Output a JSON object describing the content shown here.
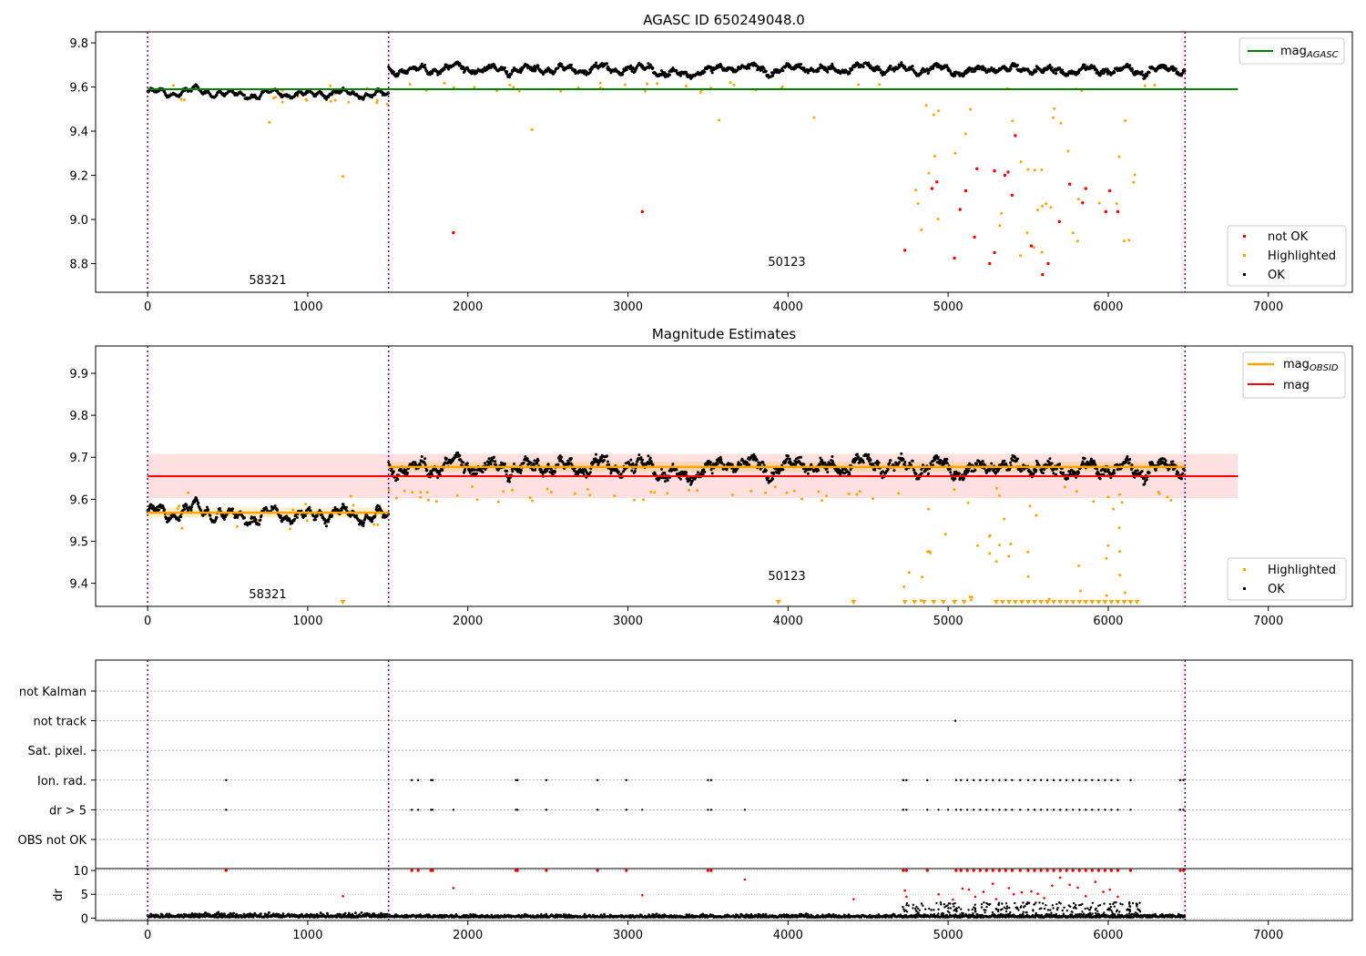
{
  "chart_data": [
    {
      "type": "scatter",
      "title": "AGASC ID 650249048.0",
      "xlim": [
        -325,
        7525
      ],
      "ylim": [
        8.67,
        9.85
      ],
      "xticks": [
        0,
        1000,
        2000,
        3000,
        4000,
        5000,
        6000,
        7000
      ],
      "xtick_labels": [
        "0",
        "1000",
        "2000",
        "3000",
        "4000",
        "5000",
        "6000",
        "7000"
      ],
      "yticks": [
        8.8,
        9.0,
        9.2,
        9.4,
        9.6,
        9.8
      ],
      "ytick_labels": [
        "8.8",
        "9.0",
        "9.2",
        "9.4",
        "9.6",
        "9.8"
      ],
      "obs_boundaries": [
        0,
        1505,
        6480
      ],
      "annotations": [
        {
          "text": "58321",
          "x": 750,
          "y": 8.72
        },
        {
          "text": "50123",
          "x": 3990,
          "y": 8.8
        }
      ],
      "hlines": [
        {
          "name": "mag_AGASC",
          "y": 9.59,
          "x0": 0,
          "x1": 6810,
          "color": "#008000"
        }
      ],
      "series": [
        {
          "name": "not OK",
          "color": "#ff0000"
        },
        {
          "name": "Highlighted",
          "color": "#ffa500"
        },
        {
          "name": "OK",
          "color": "#000000"
        }
      ],
      "trend": [
        {
          "x0": 0,
          "x1": 1505,
          "level": 9.575,
          "spread": 0.012
        },
        {
          "x0": 1505,
          "x1": 6480,
          "level": 9.68,
          "spread": 0.02
        }
      ],
      "not_ok_points": [
        [
          1910,
          8.94
        ],
        [
          3090,
          9.035
        ],
        [
          4730,
          8.86
        ],
        [
          4900,
          9.14
        ],
        [
          4930,
          9.17
        ],
        [
          5040,
          8.825
        ],
        [
          5075,
          9.045
        ],
        [
          5110,
          9.13
        ],
        [
          5165,
          8.92
        ],
        [
          5180,
          9.23
        ],
        [
          5260,
          8.8
        ],
        [
          5290,
          8.85
        ],
        [
          5290,
          9.22
        ],
        [
          5355,
          9.2
        ],
        [
          5375,
          9.215
        ],
        [
          5400,
          9.11
        ],
        [
          5420,
          9.38
        ],
        [
          5520,
          8.88
        ],
        [
          5590,
          8.75
        ],
        [
          5625,
          8.8
        ],
        [
          5695,
          8.99
        ],
        [
          5760,
          9.16
        ],
        [
          5840,
          9.075
        ],
        [
          5860,
          9.14
        ],
        [
          5985,
          9.035
        ],
        [
          6010,
          9.13
        ],
        [
          6060,
          9.035
        ]
      ]
    },
    {
      "type": "scatter",
      "title": "Magnitude Estimates",
      "xlim": [
        -325,
        7525
      ],
      "ylim": [
        9.345,
        9.965
      ],
      "xticks": [
        0,
        1000,
        2000,
        3000,
        4000,
        5000,
        6000,
        7000
      ],
      "xtick_labels": [
        "0",
        "1000",
        "2000",
        "3000",
        "4000",
        "5000",
        "6000",
        "7000"
      ],
      "yticks": [
        9.4,
        9.5,
        9.6,
        9.7,
        9.8,
        9.9
      ],
      "ytick_labels": [
        "9.4",
        "9.5",
        "9.6",
        "9.7",
        "9.8",
        "9.9"
      ],
      "obs_boundaries": [
        0,
        1505,
        6480
      ],
      "annotations": [
        {
          "text": "58321",
          "x": 750,
          "y": 9.365
        },
        {
          "text": "50123",
          "x": 3990,
          "y": 9.41
        }
      ],
      "hlines": [
        {
          "name": "mag",
          "y": 9.655,
          "x0": 0,
          "x1": 6810,
          "color": "#ff0000"
        }
      ],
      "band": {
        "y0": 9.603,
        "y1": 9.708,
        "x0": 0,
        "x1": 6810,
        "color": "#ff0000",
        "opacity": 0.12
      },
      "obs_mag": [
        {
          "x0": 0,
          "x1": 1505,
          "y": 9.568
        },
        {
          "x0": 1505,
          "x1": 6480,
          "y": 9.677
        }
      ],
      "obs_band_opacity": 0.2,
      "series": [
        {
          "name": "Highlighted",
          "color": "#ffa500"
        },
        {
          "name": "OK",
          "color": "#000000"
        }
      ],
      "trend": [
        {
          "x0": 0,
          "x1": 1505,
          "level": 9.568,
          "spread": 0.012
        },
        {
          "x0": 1505,
          "x1": 6480,
          "level": 9.677,
          "spread": 0.02
        }
      ]
    },
    {
      "type": "scatter",
      "title": "",
      "xlim": [
        -325,
        7525
      ],
      "categories": [
        "not Kalman",
        "not track",
        "Sat. pixel.",
        "Ion. rad.",
        "dr > 5",
        "OBS not OK"
      ],
      "obs_boundaries": [
        0,
        1505,
        6480
      ],
      "flag_points": {
        "not track": [
          5045
        ],
        "Ion. rad.": [
          490,
          1650,
          1690,
          1770,
          1780,
          2300,
          2310,
          2490,
          2810,
          2990,
          3500,
          3520,
          4720,
          4740,
          4870,
          5050,
          5080,
          5120,
          5160,
          5200,
          5240,
          5280,
          5320,
          5360,
          5400,
          5450,
          5500,
          5540,
          5580,
          5620,
          5660,
          5700,
          5740,
          5780,
          5820,
          5860,
          5900,
          5940,
          5980,
          6020,
          6060,
          6140,
          6450,
          6470
        ],
        "dr > 5": [
          490,
          1650,
          1690,
          1770,
          1780,
          1910,
          2300,
          2310,
          2490,
          2810,
          2990,
          3090,
          3500,
          3520,
          3730,
          4720,
          4740,
          4870,
          4940,
          5000,
          5050,
          5080,
          5120,
          5160,
          5200,
          5240,
          5280,
          5320,
          5360,
          5400,
          5450,
          5500,
          5540,
          5580,
          5620,
          5660,
          5700,
          5740,
          5780,
          5820,
          5860,
          5900,
          5940,
          5980,
          6020,
          6060,
          6140,
          6450,
          6470
        ]
      }
    },
    {
      "type": "scatter",
      "title": "",
      "ylabel": "dr",
      "xlim": [
        -325,
        7525
      ],
      "ylim": [
        -0.5,
        10.4
      ],
      "xticks": [
        0,
        1000,
        2000,
        3000,
        4000,
        5000,
        6000,
        7000
      ],
      "xtick_labels": [
        "0",
        "1000",
        "2000",
        "3000",
        "4000",
        "5000",
        "6000",
        "7000"
      ],
      "yticks": [
        0,
        5,
        10
      ],
      "ytick_labels": [
        "0",
        "5",
        "10"
      ],
      "obs_boundaries": [
        0,
        1505,
        6480
      ],
      "clipped_at": 10,
      "saturated_x": [
        490,
        1650,
        1690,
        1770,
        1780,
        2300,
        2310,
        2490,
        2810,
        2990,
        3500,
        3520,
        4720,
        4740,
        4870,
        5050,
        5080,
        5120,
        5160,
        5200,
        5240,
        5280,
        5320,
        5360,
        5400,
        5450,
        5500,
        5540,
        5580,
        5620,
        5660,
        5700,
        5740,
        5780,
        5820,
        5860,
        5900,
        5940,
        5980,
        6020,
        6060,
        6140,
        6450,
        6470
      ],
      "large_dr_points": [
        [
          1910,
          6.3
        ],
        [
          1220,
          4.6
        ],
        [
          3090,
          4.8
        ],
        [
          3730,
          8.1
        ],
        [
          4410,
          4.0
        ],
        [
          4730,
          5.8
        ],
        [
          4740,
          4.5
        ],
        [
          4940,
          5.0
        ],
        [
          5030,
          3.9
        ],
        [
          5090,
          6.2
        ],
        [
          5130,
          6.0
        ],
        [
          5170,
          4.5
        ],
        [
          5220,
          5.5
        ],
        [
          5280,
          7.2
        ],
        [
          5300,
          4.0
        ],
        [
          5380,
          6.3
        ],
        [
          5410,
          5.0
        ],
        [
          5460,
          5.4
        ],
        [
          5520,
          5.6
        ],
        [
          5560,
          5.1
        ],
        [
          5600,
          4.2
        ],
        [
          5650,
          6.8
        ],
        [
          5700,
          8.5
        ],
        [
          5760,
          7.0
        ],
        [
          5810,
          6.4
        ],
        [
          5860,
          4.6
        ],
        [
          5920,
          7.6
        ],
        [
          5970,
          5.5
        ],
        [
          6010,
          6.0
        ],
        [
          6060,
          4.5
        ]
      ]
    }
  ],
  "legends": {
    "top": [
      {
        "label": "mag",
        "sub": "AGASC",
        "color": "#008000"
      }
    ],
    "top_points": [
      {
        "label": "not OK",
        "color": "#ff0000"
      },
      {
        "label": "Highlighted",
        "color": "#ffa500"
      },
      {
        "label": "OK",
        "color": "#000000"
      }
    ],
    "mid_lines": [
      {
        "label": "mag",
        "sub": "OBSID",
        "color": "#ffa500"
      },
      {
        "label": "mag",
        "sub": "",
        "color": "#ff0000"
      }
    ],
    "mid_points": [
      {
        "label": "Highlighted",
        "color": "#ffa500"
      },
      {
        "label": "OK",
        "color": "#000000"
      }
    ]
  }
}
